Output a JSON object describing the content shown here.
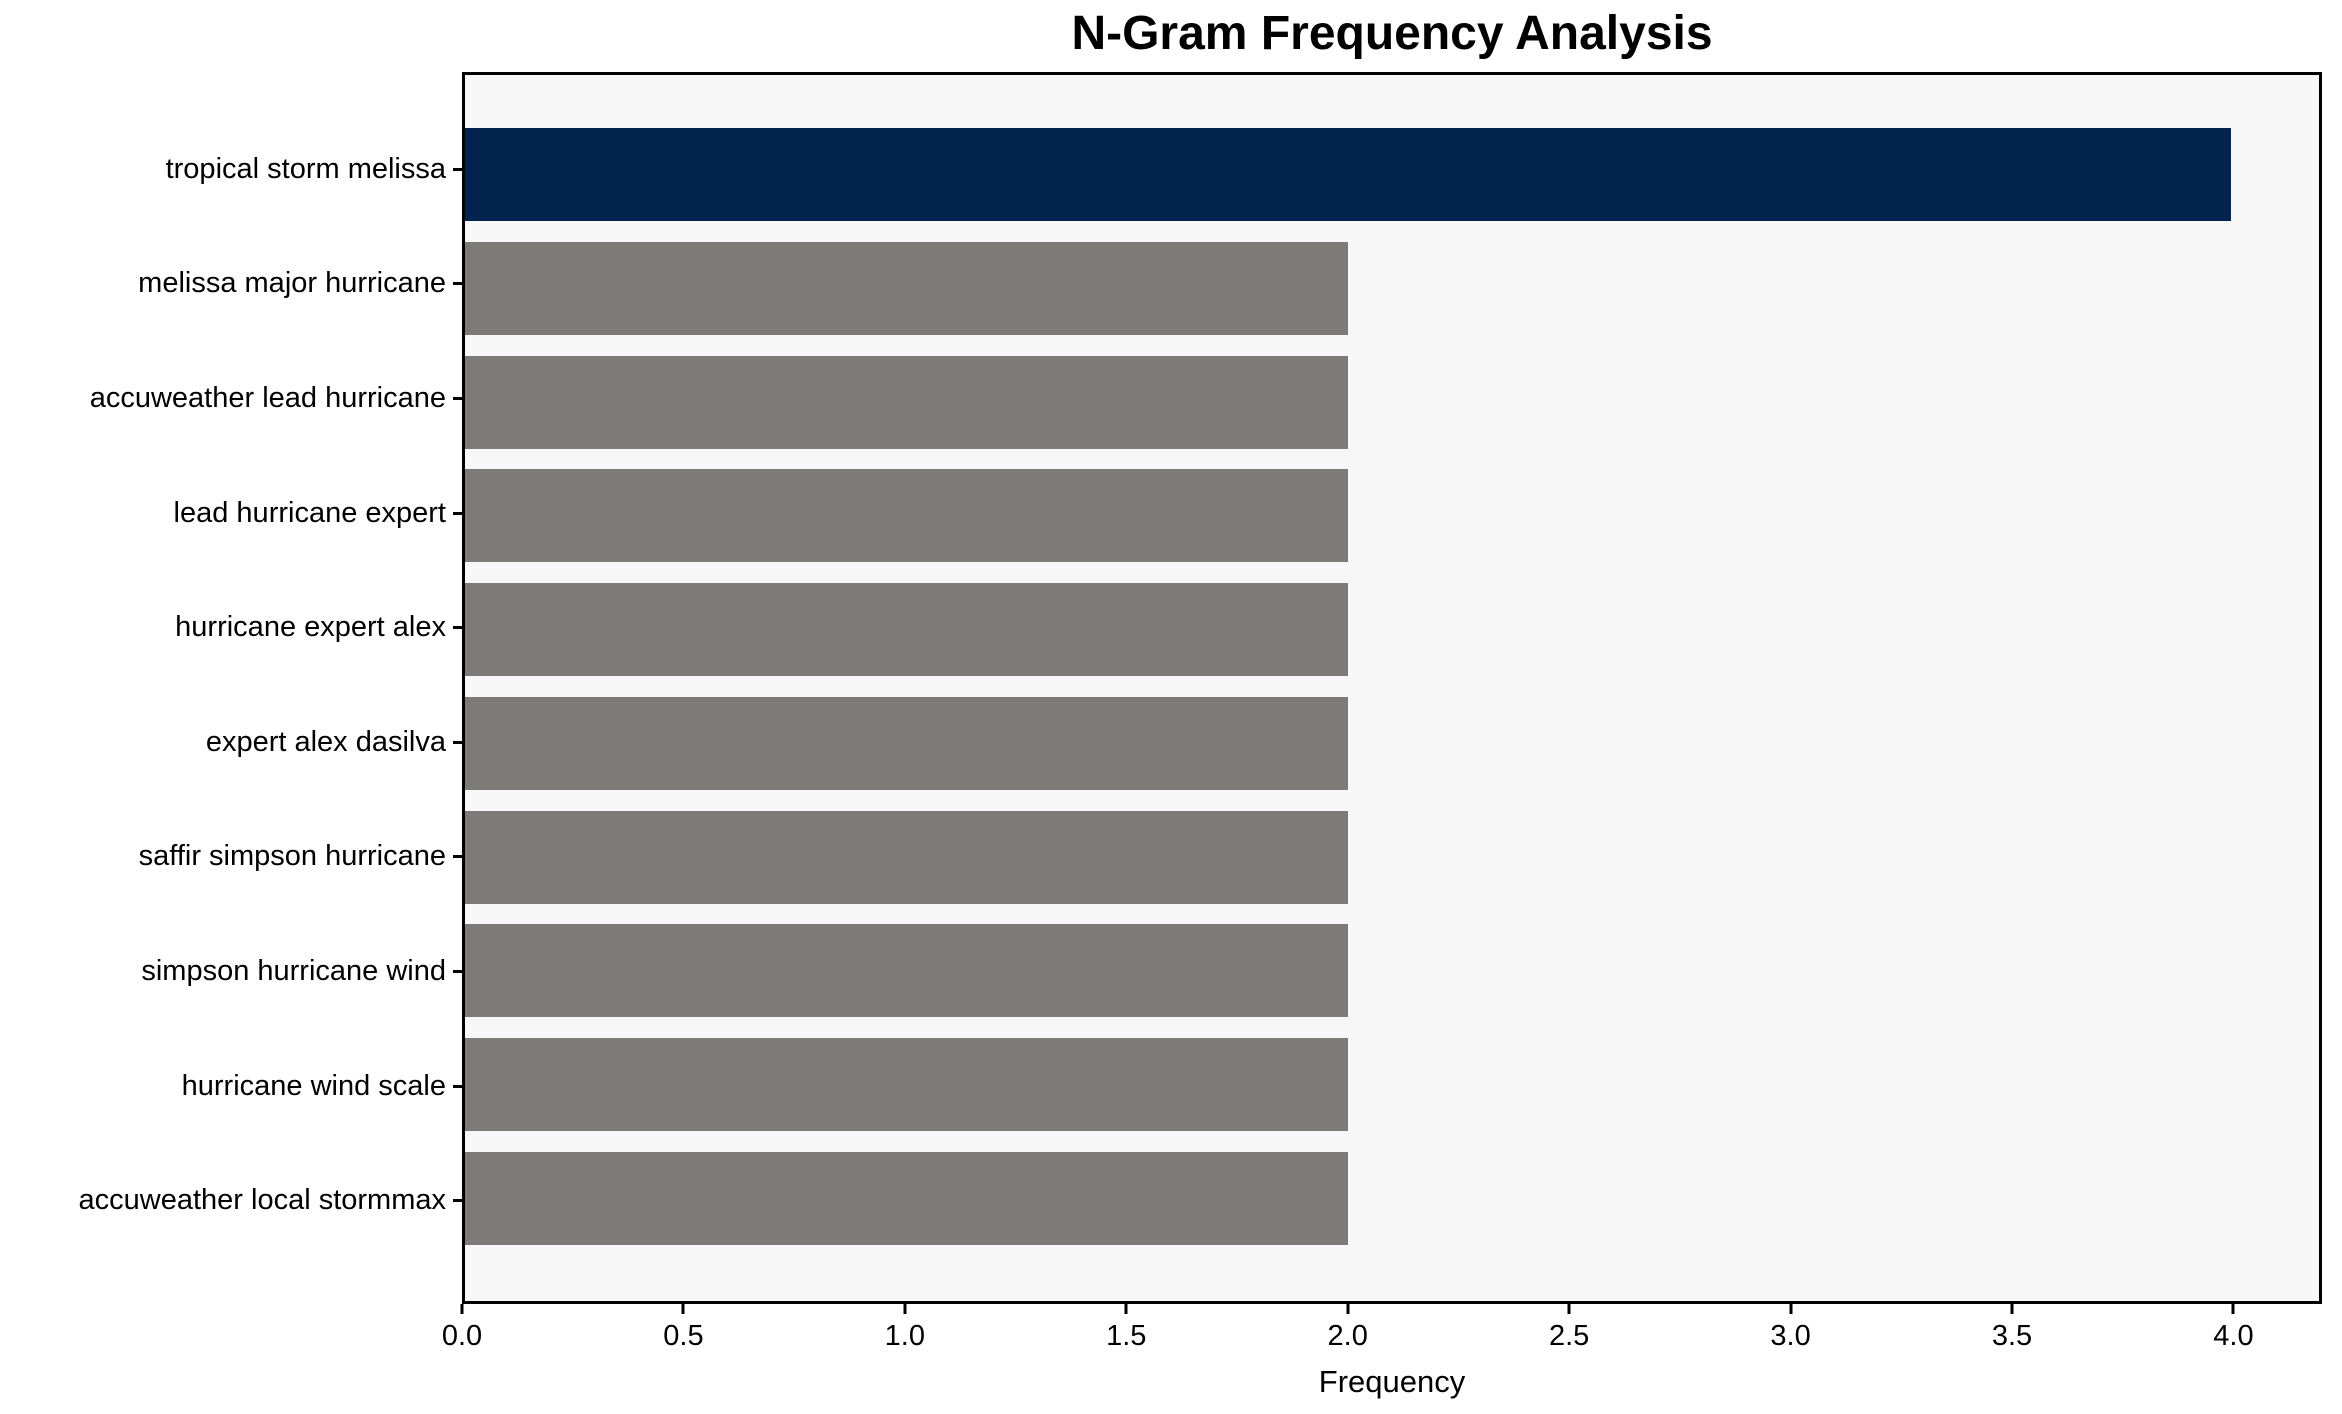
{
  "chart_data": {
    "type": "bar",
    "orientation": "horizontal",
    "title": "N-Gram Frequency Analysis",
    "xlabel": "Frequency",
    "ylabel": "",
    "categories": [
      "tropical storm melissa",
      "melissa major hurricane",
      "accuweather lead hurricane",
      "lead hurricane expert",
      "hurricane expert alex",
      "expert alex dasilva",
      "saffir simpson hurricane",
      "simpson hurricane wind",
      "hurricane wind scale",
      "accuweather local stormmax"
    ],
    "values": [
      4,
      2,
      2,
      2,
      2,
      2,
      2,
      2,
      2,
      2
    ],
    "bar_colors": [
      "#02234d",
      "#7c7b78",
      "#7c7b78",
      "#7c7b78",
      "#7c7b78",
      "#7c7b78",
      "#7c7b78",
      "#7c7b78",
      "#7c7b78",
      "#7c7b78"
    ],
    "xlim": [
      0,
      4.2
    ],
    "xtick_values": [
      0,
      0.5,
      1,
      1.5,
      2,
      2.5,
      3,
      3.5,
      4
    ],
    "xtick_labels": [
      "0.0",
      "0.5",
      "1.0",
      "1.5",
      "2.0",
      "2.5",
      "3.0",
      "3.5",
      "4.0"
    ],
    "grid": false,
    "legend": null,
    "colors": {
      "highlight": "#02234d",
      "default": "#7c7b78",
      "plot_background": "#f7f7f7",
      "figure_background": "#ffffff",
      "axis": "#000000"
    }
  }
}
